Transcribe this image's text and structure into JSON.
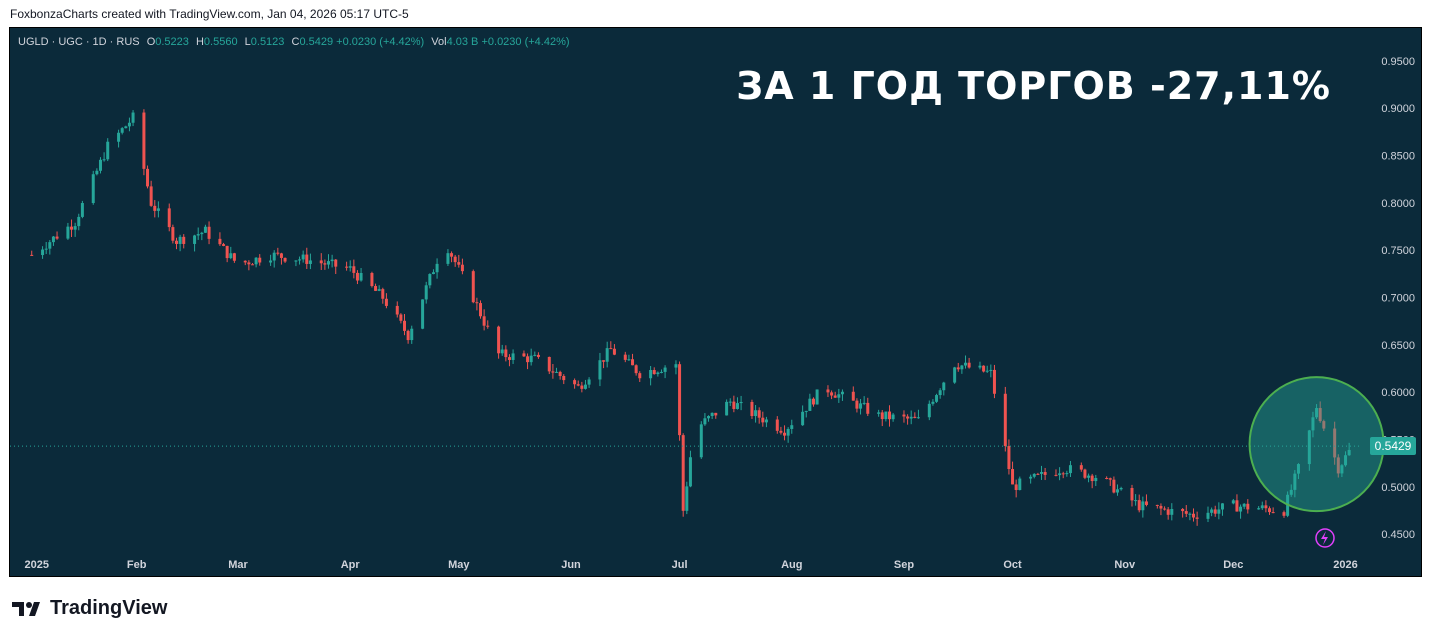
{
  "header": {
    "credit": "FoxbonzaCharts created with TradingView.com, Jan 04, 2026 05:17 UTC-5"
  },
  "legend": {
    "symbol": "UGLD · UGC · 1D · RUS",
    "o_label": "O",
    "o_value": "0.5223",
    "h_label": "H",
    "h_value": "0.5560",
    "l_label": "L",
    "l_value": "0.5123",
    "c_label": "C",
    "c_value": "0.5429",
    "change": "+0.0230 (+4.42%)",
    "vol_label": "Vol",
    "vol_value": "4.03 B",
    "vol_change": "+0.0230 (+4.42%)"
  },
  "headline": "ЗА 1 ГОД ТОРГОВ -27,11%",
  "last_price_tag": "0.5429",
  "footer": {
    "brand": "TradingView"
  },
  "colors": {
    "background": "#0b2a3a",
    "up": "#26a69a",
    "down": "#ef5350",
    "highlight_circle": "#4caf50"
  },
  "chart_data": {
    "type": "candlestick",
    "ylim": [
      0.43,
      0.97
    ],
    "y_ticks": [
      "0.9500",
      "0.9000",
      "0.8500",
      "0.8000",
      "0.7500",
      "0.7000",
      "0.6500",
      "0.6000",
      "0.5500",
      "0.5000",
      "0.4500"
    ],
    "y_tick_values": [
      0.95,
      0.9,
      0.85,
      0.8,
      0.75,
      0.7,
      0.65,
      0.6,
      0.55,
      0.5,
      0.45
    ],
    "x_ticks": [
      "2025",
      "Feb",
      "Mar",
      "Apr",
      "May",
      "Jun",
      "Jul",
      "Aug",
      "Sep",
      "Oct",
      "Nov",
      "Dec",
      "2026"
    ],
    "last_price": 0.5429,
    "closes_approx": [
      [
        "2025-01-03",
        0.745
      ],
      [
        "2025-01-15",
        0.78
      ],
      [
        "2025-01-24",
        0.86
      ],
      [
        "2025-01-31",
        0.89
      ],
      [
        "2025-02-05",
        0.8
      ],
      [
        "2025-02-12",
        0.76
      ],
      [
        "2025-02-20",
        0.77
      ],
      [
        "2025-03-01",
        0.735
      ],
      [
        "2025-03-10",
        0.745
      ],
      [
        "2025-03-20",
        0.74
      ],
      [
        "2025-04-01",
        0.73
      ],
      [
        "2025-04-10",
        0.7
      ],
      [
        "2025-04-17",
        0.66
      ],
      [
        "2025-04-22",
        0.71
      ],
      [
        "2025-04-27",
        0.76
      ],
      [
        "2025-05-05",
        0.7
      ],
      [
        "2025-05-12",
        0.64
      ],
      [
        "2025-05-22",
        0.635
      ],
      [
        "2025-06-03",
        0.605
      ],
      [
        "2025-06-12",
        0.645
      ],
      [
        "2025-06-20",
        0.62
      ],
      [
        "2025-06-30",
        0.63
      ],
      [
        "2025-07-02",
        0.475
      ],
      [
        "2025-07-05",
        0.56
      ],
      [
        "2025-07-15",
        0.59
      ],
      [
        "2025-07-30",
        0.56
      ],
      [
        "2025-08-10",
        0.605
      ],
      [
        "2025-08-25",
        0.575
      ],
      [
        "2025-09-05",
        0.57
      ],
      [
        "2025-09-15",
        0.63
      ],
      [
        "2025-09-25",
        0.62
      ],
      [
        "2025-10-01",
        0.5
      ],
      [
        "2025-10-15",
        0.52
      ],
      [
        "2025-10-25",
        0.51
      ],
      [
        "2025-11-05",
        0.48
      ],
      [
        "2025-11-20",
        0.47
      ],
      [
        "2025-12-01",
        0.48
      ],
      [
        "2025-12-15",
        0.475
      ],
      [
        "2025-12-20",
        0.53
      ],
      [
        "2025-12-24",
        0.585
      ],
      [
        "2025-12-30",
        0.52
      ],
      [
        "2026-01-03",
        0.5429
      ]
    ]
  }
}
